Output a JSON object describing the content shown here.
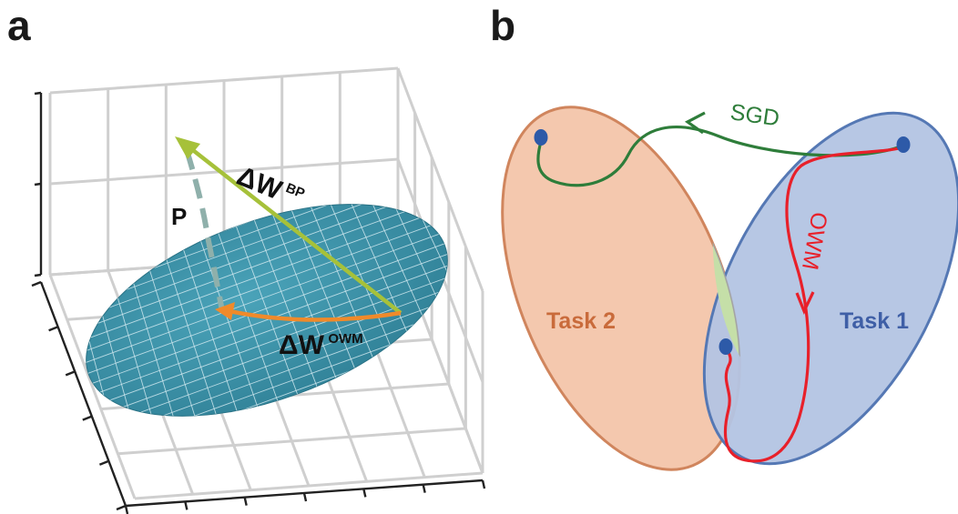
{
  "panel_a": {
    "label": "a",
    "bp_symbol": "ΔW",
    "bp_superscript": "BP",
    "owm_symbol": "ΔW",
    "owm_superscript": "OWM",
    "projection_label": "P",
    "colors": {
      "plane": "#3f96ad",
      "plane_grid": "#cfe8ef",
      "bp_arrow": "#a6c13a",
      "owm_arrow": "#f08a2a",
      "projection_dashed": "#8fb0ab",
      "box_grid": "#cfcfcf",
      "axes": "#222222"
    }
  },
  "panel_b": {
    "label": "b",
    "task1_label": "Task 1",
    "task2_label": "Task 2",
    "sgd_label": "SGD",
    "owm_label": "OWM",
    "colors": {
      "task1_fill": "#b3c4e3",
      "task1_stroke": "#5578b4",
      "task1_text": "#3f5fa6",
      "task2_fill": "#f4c8ae",
      "task2_stroke": "#d0855d",
      "task2_text": "#c96b3b",
      "overlap_fill": "#c5dfa8",
      "sgd_path": "#2e7d3a",
      "owm_path": "#e8202a",
      "dot": "#2d5aa8"
    }
  }
}
